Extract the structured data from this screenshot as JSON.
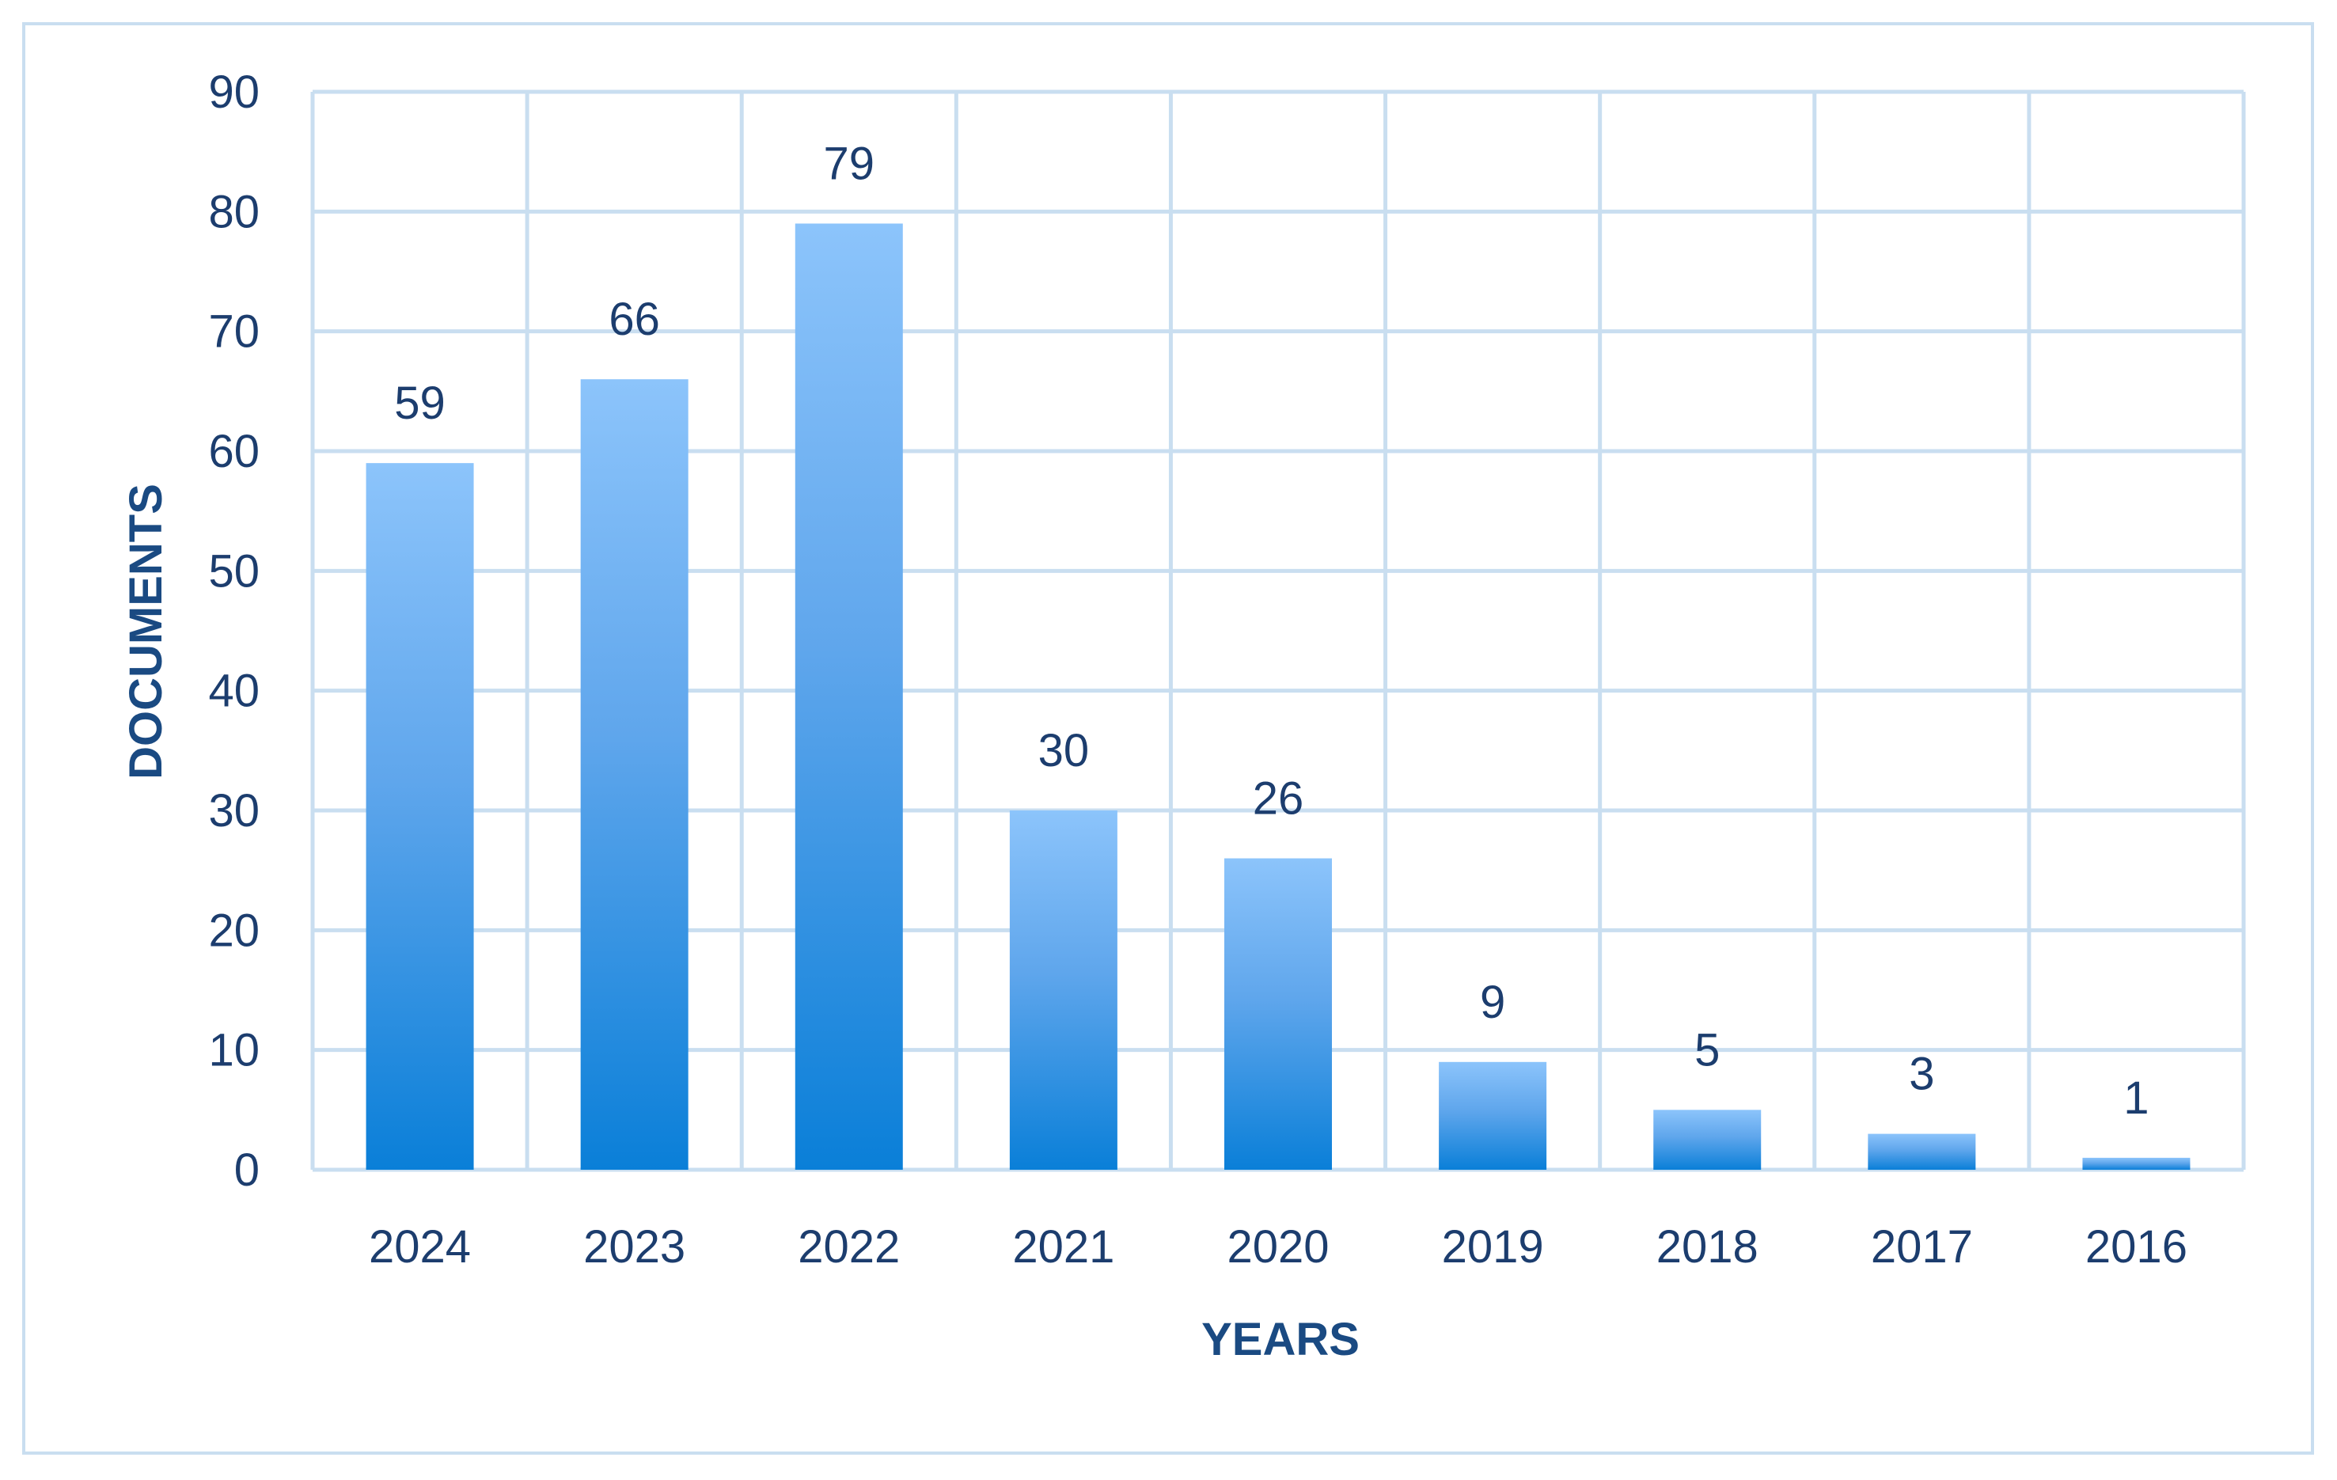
{
  "chart_data": {
    "type": "bar",
    "title": "",
    "xlabel": "YEARS",
    "ylabel": "DOCUMENTS",
    "categories": [
      "2024",
      "2023",
      "2022",
      "2021",
      "2020",
      "2019",
      "2018",
      "2017",
      "2016"
    ],
    "values": [
      59,
      66,
      79,
      30,
      26,
      9,
      5,
      3,
      1
    ],
    "ylim": [
      0,
      90
    ],
    "yticks": [
      "0",
      "10",
      "20",
      "30",
      "40",
      "50",
      "60",
      "70",
      "80",
      "90"
    ],
    "grid": true,
    "legend": "none",
    "colors": {
      "bar_top": "#8cc4fb",
      "bar_bottom": "#0a7fd8",
      "grid": "#c9def0",
      "text": "#1c3d6e",
      "axis_title": "#1a4a82"
    }
  }
}
